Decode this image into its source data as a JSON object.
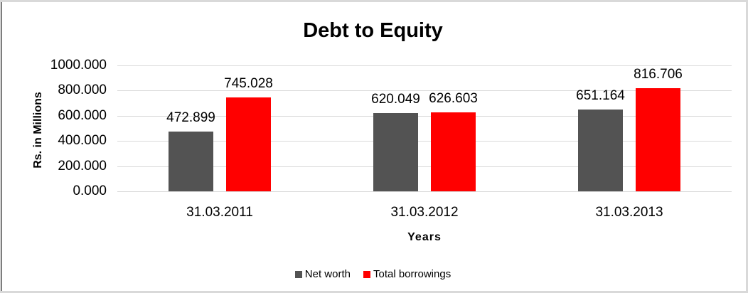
{
  "chart_data": {
    "type": "bar",
    "title": "Debt to Equity",
    "xlabel": "Years",
    "ylabel": "Rs. in Millions",
    "categories": [
      "31.03.2011",
      "31.03.2012",
      "31.03.2013"
    ],
    "series": [
      {
        "name": "Net worth",
        "color": "#535353",
        "values": [
          472.899,
          620.049,
          651.164
        ]
      },
      {
        "name": "Total borrowings",
        "color": "#ff0000",
        "values": [
          745.028,
          626.603,
          816.706
        ]
      }
    ],
    "ylim": [
      0,
      1000
    ],
    "ytick_step": 200,
    "ytick_labels": [
      "1000.000",
      "800.000",
      "600.000",
      "400.000",
      "200.000",
      "0.000"
    ],
    "value_label_decimals": 3,
    "grid": "horizontal",
    "legend_position": "bottom"
  },
  "colors": {
    "gridline": "#d9d9d9",
    "text": "#000000",
    "frame_border": "#d9d9d9",
    "frame_left_edge": "#7d7d7d",
    "background": "#ffffff",
    "bar_networth": "#535353",
    "bar_borrowings": "#ff0000"
  }
}
